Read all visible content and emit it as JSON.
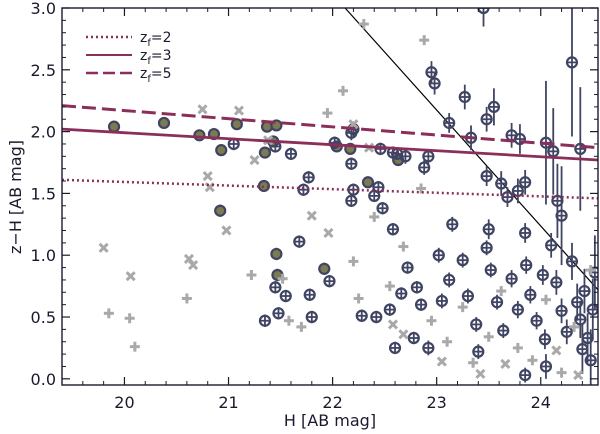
{
  "chart_data": {
    "type": "scatter",
    "title": "",
    "xlabel": "H [AB mag]",
    "ylabel": "z−H [AB mag]",
    "xlim": [
      19.4,
      24.55
    ],
    "ylim": [
      -0.05,
      3.0
    ],
    "x_ticks": [
      "20",
      "21",
      "22",
      "23",
      "24"
    ],
    "y_ticks": [
      "0.0",
      "0.5",
      "1.0",
      "1.5",
      "2.0",
      "2.5",
      "3.0"
    ],
    "grid": false,
    "legend": {
      "position": "top-left",
      "entries": [
        {
          "label": "z",
          "sub": "f",
          "value": "=2",
          "style": "dotted"
        },
        {
          "label": "z",
          "sub": "f",
          "value": "=3",
          "style": "solid"
        },
        {
          "label": "z",
          "sub": "f",
          "value": "=5",
          "style": "dashed"
        }
      ]
    },
    "colors": {
      "model_line": "#8b2e5a",
      "circle_marker": "#3f4462",
      "filled_marker": "#7d7a52",
      "plus_marker": "#a9a9a9",
      "cross_marker": "#a9a9a9",
      "diagonal": "#000000",
      "axis": "#1a1a2e"
    },
    "model_lines": [
      {
        "name": "z_f=2",
        "style": "dotted",
        "x": [
          19.4,
          24.55
        ],
        "y": [
          1.61,
          1.46
        ]
      },
      {
        "name": "z_f=3",
        "style": "solid",
        "x": [
          19.4,
          24.55
        ],
        "y": [
          2.02,
          1.77
        ]
      },
      {
        "name": "z_f=5",
        "style": "dashed",
        "x": [
          19.4,
          24.55
        ],
        "y": [
          2.21,
          1.87
        ]
      }
    ],
    "selection_line": {
      "x": [
        22.12,
        24.55
      ],
      "y": [
        3.0,
        0.72
      ]
    },
    "series": [
      {
        "name": "filled circles",
        "marker": "filled-circle",
        "points": [
          [
            19.9,
            2.04,
            0.04
          ],
          [
            20.38,
            2.07,
            0.04
          ],
          [
            20.72,
            1.97,
            0.04
          ],
          [
            20.86,
            1.98,
            0.04
          ],
          [
            21.08,
            2.06,
            0.04
          ],
          [
            21.37,
            2.04,
            0.04
          ],
          [
            21.46,
            2.05,
            0.04
          ],
          [
            21.35,
            1.83,
            0.04
          ],
          [
            20.93,
            1.85,
            0.04
          ],
          [
            21.34,
            1.56,
            0.04
          ],
          [
            20.92,
            1.36,
            0.05
          ],
          [
            21.46,
            1.01,
            0.05
          ],
          [
            21.47,
            0.84,
            0.05
          ],
          [
            21.92,
            0.89,
            0.05
          ],
          [
            22.04,
            1.88,
            0.04
          ],
          [
            22.17,
            1.86,
            0.04
          ],
          [
            22.34,
            1.59,
            0.04
          ],
          [
            22.63,
            1.77,
            0.04
          ],
          [
            21.43,
            1.92,
            0.04
          ]
        ]
      },
      {
        "name": "open circles",
        "marker": "circle-cross",
        "points": [
          [
            21.05,
            1.9,
            0.05
          ],
          [
            21.45,
            1.88,
            0.05
          ],
          [
            21.72,
            1.53,
            0.05
          ],
          [
            21.6,
            1.82,
            0.05
          ],
          [
            21.77,
            1.63,
            0.05
          ],
          [
            22.02,
            1.91,
            0.05
          ],
          [
            22.18,
            1.99,
            0.06
          ],
          [
            22.2,
            2.02,
            0.06
          ],
          [
            22.46,
            1.86,
            0.05
          ],
          [
            22.58,
            1.83,
            0.05
          ],
          [
            22.62,
            1.82,
            0.05
          ],
          [
            22.7,
            1.8,
            0.06
          ],
          [
            22.18,
            1.74,
            0.05
          ],
          [
            22.44,
            1.55,
            0.05
          ],
          [
            22.2,
            1.53,
            0.05
          ],
          [
            22.18,
            1.44,
            0.05
          ],
          [
            22.4,
            1.48,
            0.05
          ],
          [
            22.88,
            1.71,
            0.06
          ],
          [
            22.92,
            1.8,
            0.06
          ],
          [
            22.95,
            2.48,
            0.09
          ],
          [
            22.98,
            2.39,
            0.09
          ],
          [
            23.12,
            2.07,
            0.08
          ],
          [
            23.27,
            2.28,
            0.1
          ],
          [
            23.33,
            1.95,
            0.1
          ],
          [
            23.48,
            2.1,
            0.1
          ],
          [
            23.55,
            2.2,
            0.15
          ],
          [
            23.48,
            1.64,
            0.08
          ],
          [
            23.62,
            1.58,
            0.1
          ],
          [
            23.72,
            1.97,
            0.1
          ],
          [
            23.8,
            1.94,
            0.12
          ],
          [
            23.68,
            1.47,
            0.08
          ],
          [
            23.78,
            1.52,
            0.1
          ],
          [
            23.85,
            1.59,
            0.1
          ],
          [
            23.45,
            3.0,
            0.15
          ],
          [
            24.05,
            1.91,
            0.5
          ],
          [
            24.12,
            1.84,
            0.35
          ],
          [
            24.16,
            1.44,
            0.3
          ],
          [
            24.3,
            2.56,
            0.6
          ],
          [
            24.38,
            1.86,
            0.5
          ],
          [
            24.2,
            1.32,
            0.4
          ],
          [
            21.68,
            1.11,
            0.05
          ],
          [
            21.78,
            0.68,
            0.05
          ],
          [
            21.97,
            0.79,
            0.05
          ],
          [
            21.8,
            0.5,
            0.05
          ],
          [
            21.35,
            0.47,
            0.05
          ],
          [
            21.48,
            0.53,
            0.05
          ],
          [
            21.55,
            0.67,
            0.05
          ],
          [
            21.45,
            0.74,
            0.05
          ],
          [
            22.28,
            0.51,
            0.05
          ],
          [
            22.48,
            1.38,
            0.05
          ],
          [
            22.58,
            1.21,
            0.05
          ],
          [
            22.72,
            0.9,
            0.05
          ],
          [
            22.66,
            0.69,
            0.05
          ],
          [
            22.55,
            0.56,
            0.05
          ],
          [
            22.42,
            0.5,
            0.05
          ],
          [
            22.81,
            0.74,
            0.05
          ],
          [
            22.85,
            0.6,
            0.05
          ],
          [
            22.78,
            0.33,
            0.05
          ],
          [
            22.6,
            0.25,
            0.05
          ],
          [
            22.92,
            0.25,
            0.06
          ],
          [
            23.02,
            1.0,
            0.06
          ],
          [
            23.12,
            0.8,
            0.06
          ],
          [
            23.05,
            0.63,
            0.06
          ],
          [
            23.25,
            0.96,
            0.06
          ],
          [
            23.3,
            0.67,
            0.06
          ],
          [
            23.38,
            0.44,
            0.06
          ],
          [
            23.48,
            1.06,
            0.06
          ],
          [
            23.52,
            0.88,
            0.06
          ],
          [
            23.58,
            0.62,
            0.06
          ],
          [
            23.64,
            0.39,
            0.06
          ],
          [
            23.4,
            0.22,
            0.06
          ],
          [
            23.72,
            0.81,
            0.07
          ],
          [
            23.78,
            0.56,
            0.07
          ],
          [
            23.86,
            0.92,
            0.07
          ],
          [
            23.9,
            0.68,
            0.07
          ],
          [
            23.96,
            0.47,
            0.07
          ],
          [
            24.02,
            0.84,
            0.08
          ],
          [
            24.04,
            0.32,
            0.08
          ],
          [
            24.1,
            1.08,
            0.1
          ],
          [
            24.15,
            0.78,
            0.1
          ],
          [
            24.2,
            0.55,
            0.1
          ],
          [
            24.25,
            0.38,
            0.1
          ],
          [
            24.3,
            0.95,
            0.15
          ],
          [
            24.35,
            0.62,
            0.15
          ],
          [
            24.38,
            0.48,
            0.15
          ],
          [
            24.42,
            0.71,
            0.18
          ],
          [
            24.45,
            0.33,
            0.2
          ],
          [
            24.48,
            0.15,
            0.25
          ],
          [
            24.5,
            0.56,
            0.25
          ],
          [
            24.52,
            0.86,
            0.3
          ],
          [
            23.85,
            0.03,
            0.06
          ],
          [
            24.05,
            0.1,
            0.1
          ],
          [
            24.4,
            0.24,
            0.2
          ],
          [
            23.15,
            1.25,
            0.06
          ],
          [
            23.5,
            1.21,
            0.08
          ],
          [
            23.85,
            1.18,
            0.08
          ]
        ]
      },
      {
        "name": "plus markers",
        "marker": "plus",
        "points": [
          [
            19.85,
            0.53
          ],
          [
            20.05,
            0.49
          ],
          [
            20.1,
            0.26
          ],
          [
            20.6,
            0.65
          ],
          [
            21.22,
            0.84
          ],
          [
            21.52,
            0.81
          ],
          [
            21.58,
            0.47
          ],
          [
            21.7,
            0.42
          ],
          [
            21.95,
            2.15
          ],
          [
            22.1,
            2.33
          ],
          [
            22.2,
            0.95
          ],
          [
            22.25,
            0.65
          ],
          [
            22.4,
            1.31
          ],
          [
            22.55,
            0.75
          ],
          [
            22.68,
            1.07
          ],
          [
            22.85,
            1.54
          ],
          [
            22.88,
            2.74
          ],
          [
            22.95,
            0.47
          ],
          [
            23.1,
            0.3
          ],
          [
            23.25,
            0.58
          ],
          [
            23.35,
            0.13
          ],
          [
            23.5,
            0.34
          ],
          [
            23.62,
            0.71
          ],
          [
            23.78,
            0.25
          ],
          [
            23.92,
            0.15
          ],
          [
            24.05,
            0.64
          ],
          [
            24.2,
            0.05
          ],
          [
            24.32,
            0.42
          ],
          [
            24.48,
            0.88
          ],
          [
            22.3,
            2.87
          ]
        ]
      },
      {
        "name": "cross markers",
        "marker": "x",
        "points": [
          [
            19.8,
            1.06
          ],
          [
            20.06,
            0.83
          ],
          [
            20.62,
            0.97
          ],
          [
            20.66,
            0.92
          ],
          [
            20.82,
            1.55
          ],
          [
            20.75,
            2.18
          ],
          [
            20.8,
            1.64
          ],
          [
            20.98,
            1.2
          ],
          [
            21.1,
            2.17
          ],
          [
            21.25,
            1.77
          ],
          [
            21.38,
            1.93
          ],
          [
            21.8,
            1.32
          ],
          [
            21.96,
            1.18
          ],
          [
            22.35,
            1.87
          ],
          [
            22.2,
            2.06
          ],
          [
            22.58,
            0.44
          ],
          [
            22.68,
            0.36
          ],
          [
            23.05,
            0.14
          ],
          [
            23.42,
            0.04
          ],
          [
            23.66,
            0.12
          ],
          [
            24.15,
            0.23
          ],
          [
            24.36,
            0.03
          ]
        ]
      }
    ]
  }
}
